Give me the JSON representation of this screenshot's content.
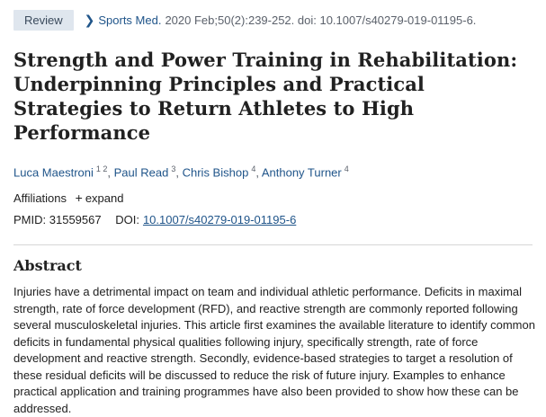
{
  "header": {
    "badge": "Review",
    "journal": "Sports Med.",
    "citation": "2020 Feb;50(2):239-252. doi: 10.1007/s40279-019-01195-6."
  },
  "article": {
    "title": "Strength and Power Training in Rehabilitation: Underpinning Principles and Practical Strategies to Return Athletes to High Performance",
    "authors": [
      {
        "name": "Luca Maestroni",
        "affs": "1 2"
      },
      {
        "name": "Paul Read",
        "affs": "3"
      },
      {
        "name": "Chris Bishop",
        "affs": "4"
      },
      {
        "name": "Anthony Turner",
        "affs": "4"
      }
    ],
    "affiliations_label": "Affiliations",
    "expand_label": "expand",
    "pmid_label": "PMID:",
    "pmid": "31559567",
    "doi_label": "DOI:",
    "doi": "10.1007/s40279-019-01195-6"
  },
  "abstract": {
    "heading": "Abstract",
    "text": "Injuries have a detrimental impact on team and individual athletic performance. Deficits in maximal strength, rate of force development (RFD), and reactive strength are commonly reported following several musculoskeletal injuries. This article first examines the available literature to identify common deficits in fundamental physical qualities following injury, specifically strength, rate of force development and reactive strength. Secondly, evidence-based strategies to target a resolution of these residual deficits will be discussed to reduce the risk of future injury. Examples to enhance practical application and training programmes have also been provided to show how these can be addressed."
  },
  "icons": {
    "chevron": "chevron-right-icon",
    "plus": "plus-icon"
  }
}
